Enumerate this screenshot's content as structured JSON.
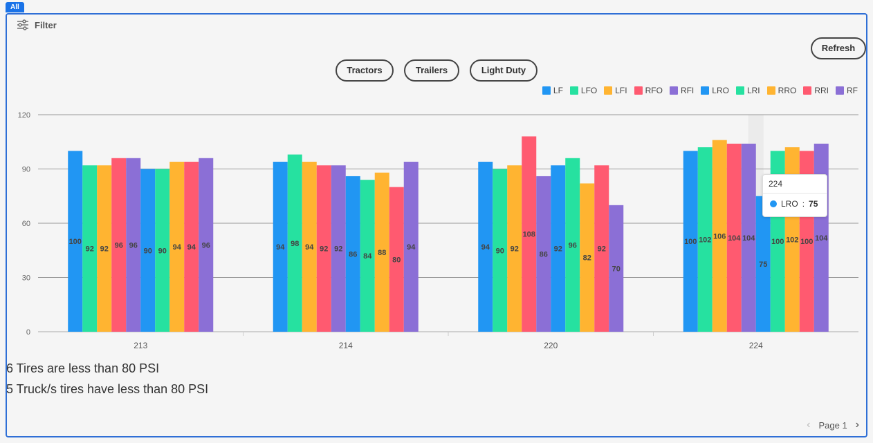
{
  "tab": {
    "label": "All"
  },
  "filter": {
    "label": "Filter",
    "icon": "sliders-icon"
  },
  "refresh": {
    "label": "Refresh"
  },
  "categories_buttons": [
    {
      "label": "Tractors"
    },
    {
      "label": "Trailers"
    },
    {
      "label": "Light Duty"
    }
  ],
  "chart_data": {
    "type": "bar",
    "categories": [
      "213",
      "214",
      "220",
      "224"
    ],
    "series": [
      {
        "name": "LF",
        "color": "#2196f3",
        "values": [
          100,
          94,
          94,
          100
        ]
      },
      {
        "name": "LFO",
        "color": "#26e1a0",
        "values": [
          92,
          98,
          90,
          102
        ]
      },
      {
        "name": "LFI",
        "color": "#ffb431",
        "values": [
          92,
          94,
          92,
          106
        ]
      },
      {
        "name": "RFO",
        "color": "#ff5a70",
        "values": [
          96,
          92,
          108,
          104
        ]
      },
      {
        "name": "RFI",
        "color": "#8b6fd6",
        "values": [
          96,
          92,
          86,
          104
        ]
      },
      {
        "name": "LRO",
        "color": "#2196f3",
        "values": [
          90,
          86,
          92,
          75
        ]
      },
      {
        "name": "LRI",
        "color": "#26e1a0",
        "values": [
          90,
          84,
          96,
          100
        ]
      },
      {
        "name": "RRO",
        "color": "#ffb431",
        "values": [
          94,
          88,
          82,
          102
        ]
      },
      {
        "name": "RRI",
        "color": "#ff5a70",
        "values": [
          94,
          80,
          92,
          100
        ]
      },
      {
        "name": "RF",
        "color": "#8b6fd6",
        "values": [
          96,
          94,
          70,
          104
        ]
      }
    ],
    "yticks": [
      0,
      30,
      60,
      90,
      120
    ],
    "ylim": [
      0,
      120
    ],
    "grid": true,
    "legend": "top-right",
    "highlight_category": "224"
  },
  "tooltip": {
    "title": "224",
    "series": "LRO",
    "sep": ":",
    "value": "75"
  },
  "messages": [
    "6 Tires are less than 80 PSI",
    "5 Truck/s tires have less than 80 PSI"
  ],
  "pager": {
    "label": "Page 1"
  }
}
